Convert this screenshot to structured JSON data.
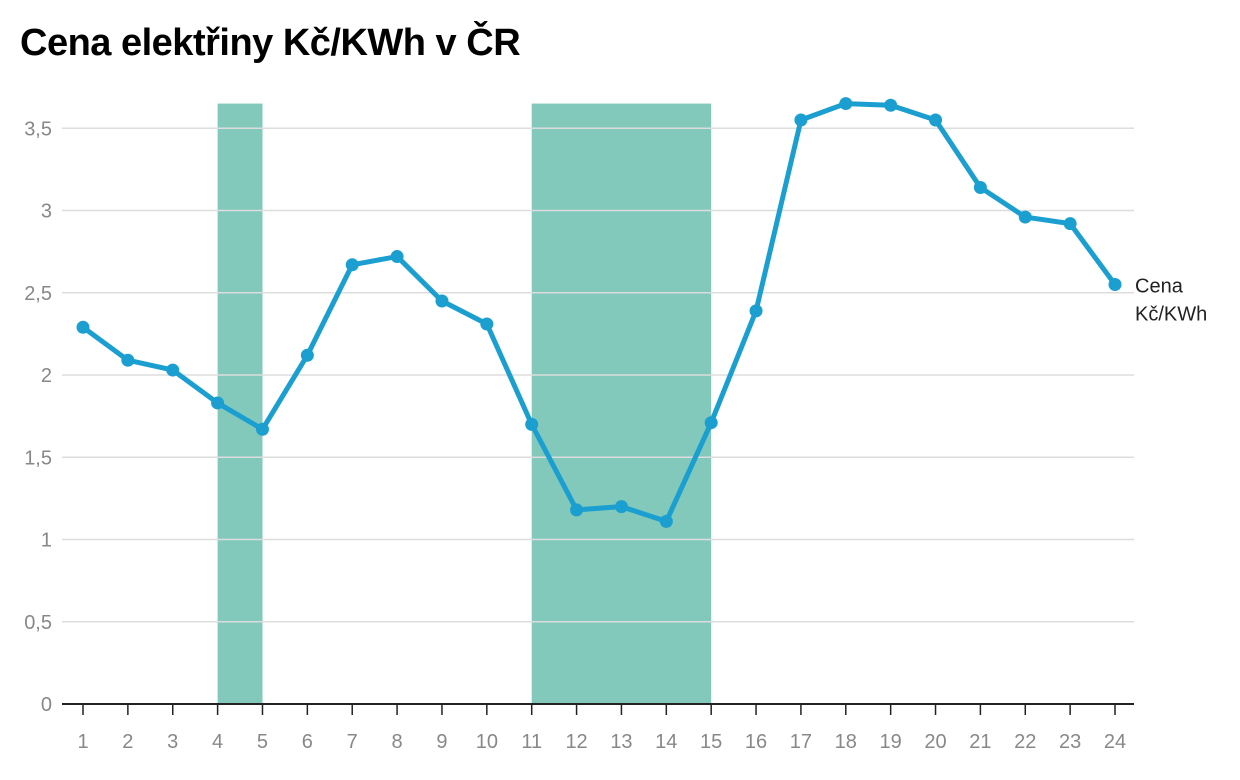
{
  "title": "Cena elektřiny Kč/KWh v ČR",
  "chart_data": {
    "type": "line",
    "title": "Cena elektřiny Kč/KWh v ČR",
    "x": [
      1,
      2,
      3,
      4,
      5,
      6,
      7,
      8,
      9,
      10,
      11,
      12,
      13,
      14,
      15,
      16,
      17,
      18,
      19,
      20,
      21,
      22,
      23,
      24
    ],
    "series": [
      {
        "name": "Cena Kč/KWh",
        "label_lines": [
          "Cena",
          "Kč/KWh"
        ],
        "color": "#1a9fd0",
        "values": [
          2.29,
          2.09,
          2.03,
          1.83,
          1.67,
          2.12,
          2.67,
          2.72,
          2.45,
          2.31,
          1.7,
          1.18,
          1.2,
          1.11,
          1.71,
          2.39,
          3.55,
          3.65,
          3.64,
          3.55,
          3.14,
          2.96,
          2.92,
          2.55
        ]
      }
    ],
    "highlight_ranges": [
      {
        "from": 4,
        "to": 5,
        "color": "#82c8bb"
      },
      {
        "from": 11,
        "to": 15,
        "color": "#82c8bb"
      }
    ],
    "y_ticks": [
      "0",
      "0,5",
      "1",
      "1,5",
      "2",
      "2,5",
      "3",
      "3,5"
    ],
    "y_tick_values": [
      0,
      0.5,
      1,
      1.5,
      2,
      2.5,
      3,
      3.5
    ],
    "x_ticks": [
      "1",
      "2",
      "3",
      "4",
      "5",
      "6",
      "7",
      "8",
      "9",
      "10",
      "11",
      "12",
      "13",
      "14",
      "15",
      "16",
      "17",
      "18",
      "19",
      "20",
      "21",
      "22",
      "23",
      "24"
    ],
    "ylim": [
      0,
      3.65
    ],
    "grid": true,
    "xlabel": "",
    "ylabel": ""
  }
}
